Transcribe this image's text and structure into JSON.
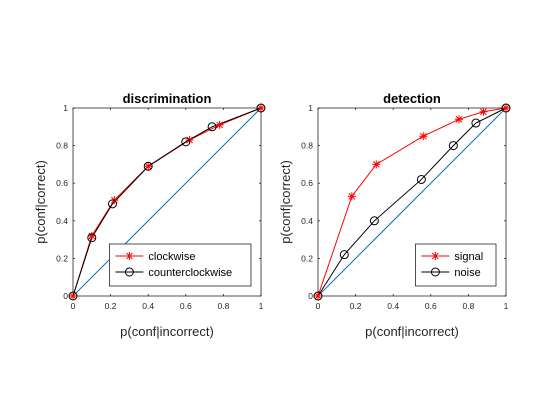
{
  "chart_data": [
    {
      "type": "line",
      "title": "discrimination",
      "xlabel": "p(conf|incorrect)",
      "ylabel": "p(conf|correct)",
      "xlim": [
        0,
        1
      ],
      "ylim": [
        0,
        1
      ],
      "xticks": [
        "0",
        "0.2",
        "0.4",
        "0.6",
        "0.8",
        "1"
      ],
      "yticks": [
        "0",
        "0.2",
        "0.4",
        "0.6",
        "0.8",
        "1"
      ],
      "grid": false,
      "legend_position": "bottom-right",
      "diagonal": true,
      "series": [
        {
          "name": "clockwise",
          "color": "#ff0000",
          "marker": "asterisk",
          "x": [
            0,
            0.1,
            0.22,
            0.4,
            0.62,
            0.78,
            1
          ],
          "y": [
            0,
            0.32,
            0.51,
            0.69,
            0.83,
            0.91,
            1
          ]
        },
        {
          "name": "counterclockwise",
          "color": "#000000",
          "marker": "circle",
          "x": [
            0,
            0.1,
            0.21,
            0.4,
            0.6,
            0.74,
            1
          ],
          "y": [
            0,
            0.31,
            0.49,
            0.69,
            0.82,
            0.9,
            1
          ]
        }
      ]
    },
    {
      "type": "line",
      "title": "detection",
      "xlabel": "p(conf|incorrect)",
      "ylabel": "p(conf|correct)",
      "xlim": [
        0,
        1
      ],
      "ylim": [
        0,
        1
      ],
      "xticks": [
        "0",
        "0.2",
        "0.4",
        "0.6",
        "0.8",
        "1"
      ],
      "yticks": [
        "0",
        "0.2",
        "0.4",
        "0.6",
        "0.8",
        "1"
      ],
      "grid": false,
      "legend_position": "bottom-right",
      "diagonal": true,
      "series": [
        {
          "name": "signal",
          "color": "#ff0000",
          "marker": "asterisk",
          "x": [
            0,
            0.18,
            0.31,
            0.56,
            0.75,
            0.88,
            1
          ],
          "y": [
            0,
            0.53,
            0.7,
            0.85,
            0.94,
            0.98,
            1
          ]
        },
        {
          "name": "noise",
          "color": "#000000",
          "marker": "circle",
          "x": [
            0,
            0.14,
            0.3,
            0.55,
            0.72,
            0.84,
            1
          ],
          "y": [
            0,
            0.22,
            0.4,
            0.62,
            0.8,
            0.92,
            1
          ]
        }
      ]
    }
  ],
  "diagonal_color": "#0072bd"
}
